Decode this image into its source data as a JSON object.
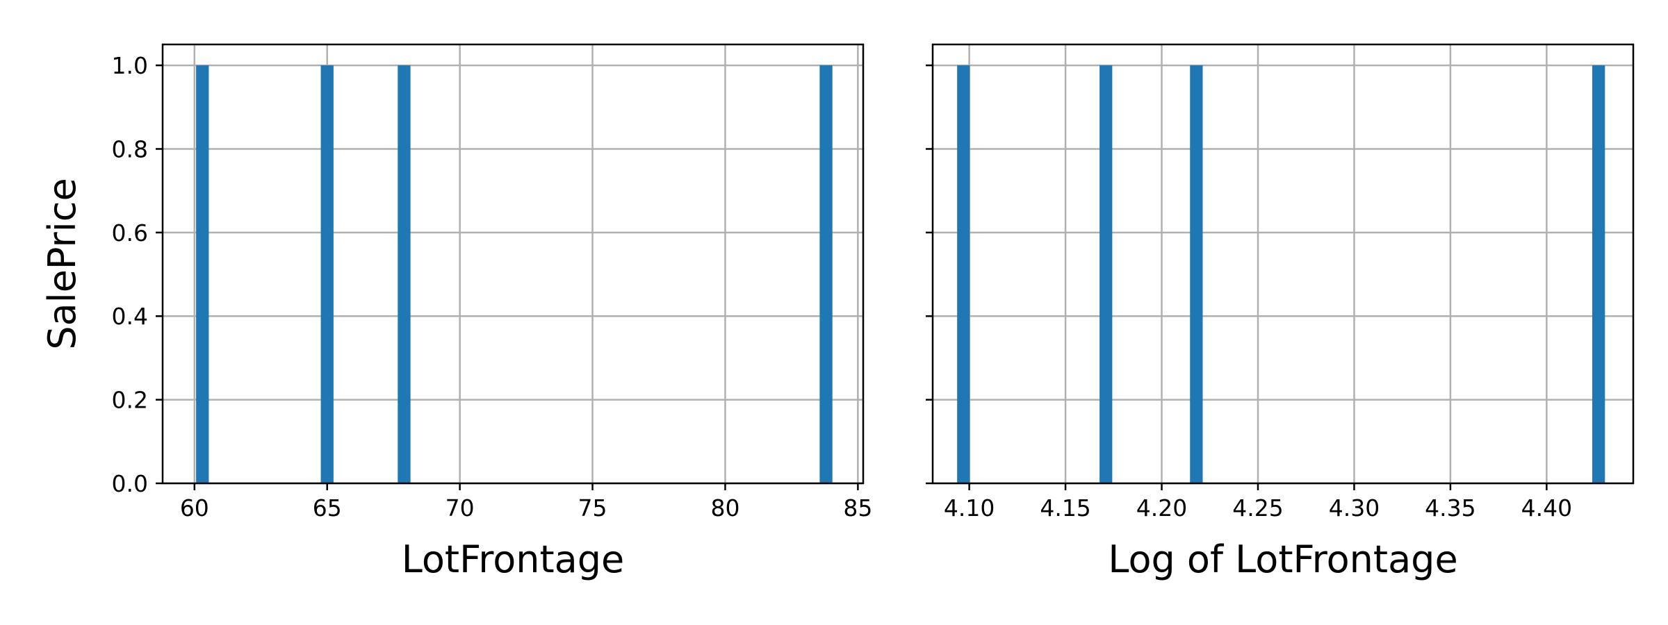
{
  "chart_data": [
    {
      "type": "bar",
      "bar_color": "#1f77b4",
      "xlabel": "LotFrontage",
      "ylabel": "SalePrice",
      "xlim": [
        58.8,
        85.2
      ],
      "ylim": [
        0,
        1.05
      ],
      "x_ticks": [
        60,
        65,
        70,
        75,
        80,
        85
      ],
      "x_tick_labels": [
        "60",
        "65",
        "70",
        "75",
        "80",
        "85"
      ],
      "y_ticks": [
        0,
        0.2,
        0.4,
        0.6,
        0.8,
        1.0
      ],
      "y_tick_labels": [
        "0.0",
        "0.2",
        "0.4",
        "0.6",
        "0.8",
        "1.0"
      ],
      "grid": true,
      "bin_width": 0.48,
      "bins": [
        {
          "x": 60.3,
          "value": 1
        },
        {
          "x": 65.0,
          "value": 1
        },
        {
          "x": 67.9,
          "value": 1
        },
        {
          "x": 83.8,
          "value": 1
        }
      ]
    },
    {
      "type": "bar",
      "bar_color": "#1f77b4",
      "xlabel": "Log of LotFrontage",
      "ylabel": "",
      "xlim": [
        4.081,
        4.445
      ],
      "ylim": [
        0,
        1.05
      ],
      "x_ticks": [
        4.1,
        4.15,
        4.2,
        4.25,
        4.3,
        4.35,
        4.4
      ],
      "x_tick_labels": [
        "4.10",
        "4.15",
        "4.20",
        "4.25",
        "4.30",
        "4.35",
        "4.40"
      ],
      "y_ticks": [
        0,
        0.2,
        0.4,
        0.6,
        0.8,
        1.0
      ],
      "y_tick_labels": [],
      "grid": true,
      "bin_width": 0.0066,
      "bins": [
        {
          "x": 4.097,
          "value": 1
        },
        {
          "x": 4.171,
          "value": 1
        },
        {
          "x": 4.218,
          "value": 1
        },
        {
          "x": 4.427,
          "value": 1
        }
      ]
    }
  ]
}
